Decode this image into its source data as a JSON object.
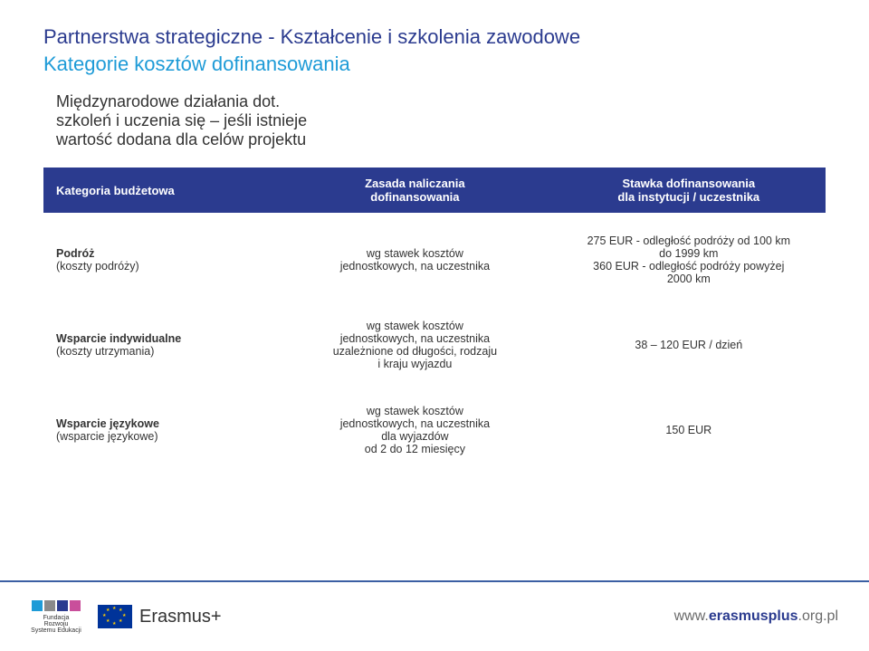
{
  "colors": {
    "title1": "#2b3b8f",
    "title2": "#1e9bd7",
    "header_bg": "#2b3b8f",
    "header_fg": "#ffffff",
    "body_text": "#333333",
    "footer_border": "#3b5fa3",
    "url_gray": "#6a6a6a",
    "url_accent": "#2b3b8f",
    "eu_blue": "#003399",
    "eu_yellow": "#ffcc00",
    "frse_c1": "#1e9bd7",
    "frse_c2": "#8a8a8a",
    "frse_c3": "#2b3b8f",
    "frse_c4": "#c94f9b"
  },
  "title_line1": "Partnerstwa strategiczne - Kształcenie i szkolenia zawodowe",
  "title_line2": "Kategorie kosztów dofinansowania",
  "subtitle": "Międzynarodowe działania dot.\nszkoleń i uczenia się – jeśli istnieje\nwartość dodana dla celów projektu",
  "table": {
    "headers": [
      "Kategoria budżetowa",
      "Zasada naliczania\ndofinansowania",
      "Stawka dofinansowania\ndla instytucji / uczestnika"
    ],
    "rows": [
      {
        "label_bold": "Podróż",
        "label_sub": "(koszty podróży)",
        "col1": "wg stawek kosztów\njednostkowych, na uczestnika",
        "col2": "275 EUR - odległość podróży od 100 km\ndo 1999 km\n360 EUR - odległość podróży powyżej\n2000 km"
      },
      {
        "label_bold": "Wsparcie indywidualne",
        "label_sub": "(koszty utrzymania)",
        "col1": "wg stawek kosztów\njednostkowych, na uczestnika\nuzależnione od długości, rodzaju\ni kraju wyjazdu",
        "col2": "38 – 120 EUR / dzień"
      },
      {
        "label_bold": "Wsparcie językowe",
        "label_sub": "(wsparcie językowe)",
        "col1": "wg stawek kosztów\njednostkowych, na uczestnika\ndla wyjazdów\nod 2 do 12 miesięcy",
        "col2": "150 EUR"
      }
    ]
  },
  "footer": {
    "frse_caption": "Fundacja Rozwoju\nSystemu Edukacji",
    "erasmus_text": "Erasmus",
    "erasmus_plus": "+",
    "url_prefix": "www.",
    "url_mid": "erasmusplus",
    "url_suffix": ".org.pl"
  }
}
